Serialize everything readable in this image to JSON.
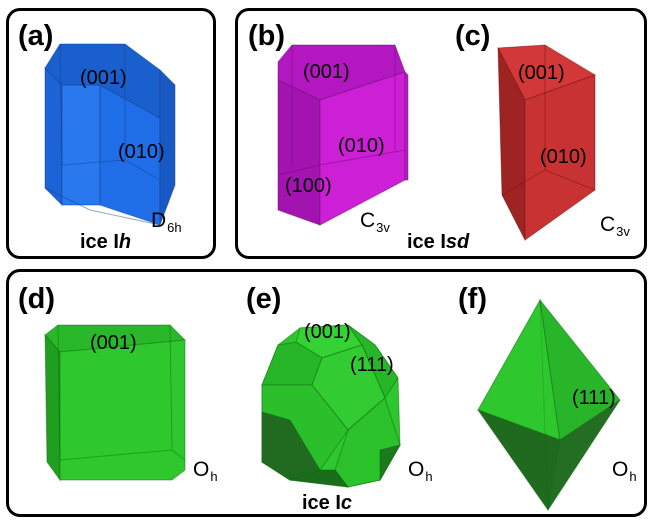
{
  "panels": {
    "a": {
      "label": "(a)",
      "faces": [
        "(001)",
        "(010)"
      ],
      "symmetry": {
        "base": "D",
        "sub": "6h"
      }
    },
    "b": {
      "label": "(b)",
      "faces": [
        "(001)",
        "(010)",
        "(100)"
      ],
      "symmetry": {
        "base": "C",
        "sub": "3v"
      }
    },
    "c": {
      "label": "(c)",
      "faces": [
        "(001)",
        "(010)"
      ],
      "symmetry": {
        "base": "C",
        "sub": "3v"
      }
    },
    "d": {
      "label": "(d)",
      "faces": [
        "(001)"
      ],
      "symmetry": {
        "base": "O",
        "sub": "h"
      }
    },
    "e": {
      "label": "(e)",
      "faces": [
        "(001)",
        "(111)"
      ],
      "symmetry": {
        "base": "O",
        "sub": "h"
      }
    },
    "f": {
      "label": "(f)",
      "faces": [
        "(111)"
      ],
      "symmetry": {
        "base": "O",
        "sub": "h"
      }
    }
  },
  "phases": {
    "ih": {
      "prefix": "ice I",
      "suffix": "h"
    },
    "isd": {
      "prefix": "ice I",
      "suffix": "sd"
    },
    "ic": {
      "prefix": "ice I",
      "suffix": "c"
    }
  },
  "colors": {
    "hexagonal_blue": "#1f6ee8",
    "magenta": "#c81ed2",
    "red": "#c93232",
    "green": "#2ec82e",
    "panel_border": "#000000"
  }
}
